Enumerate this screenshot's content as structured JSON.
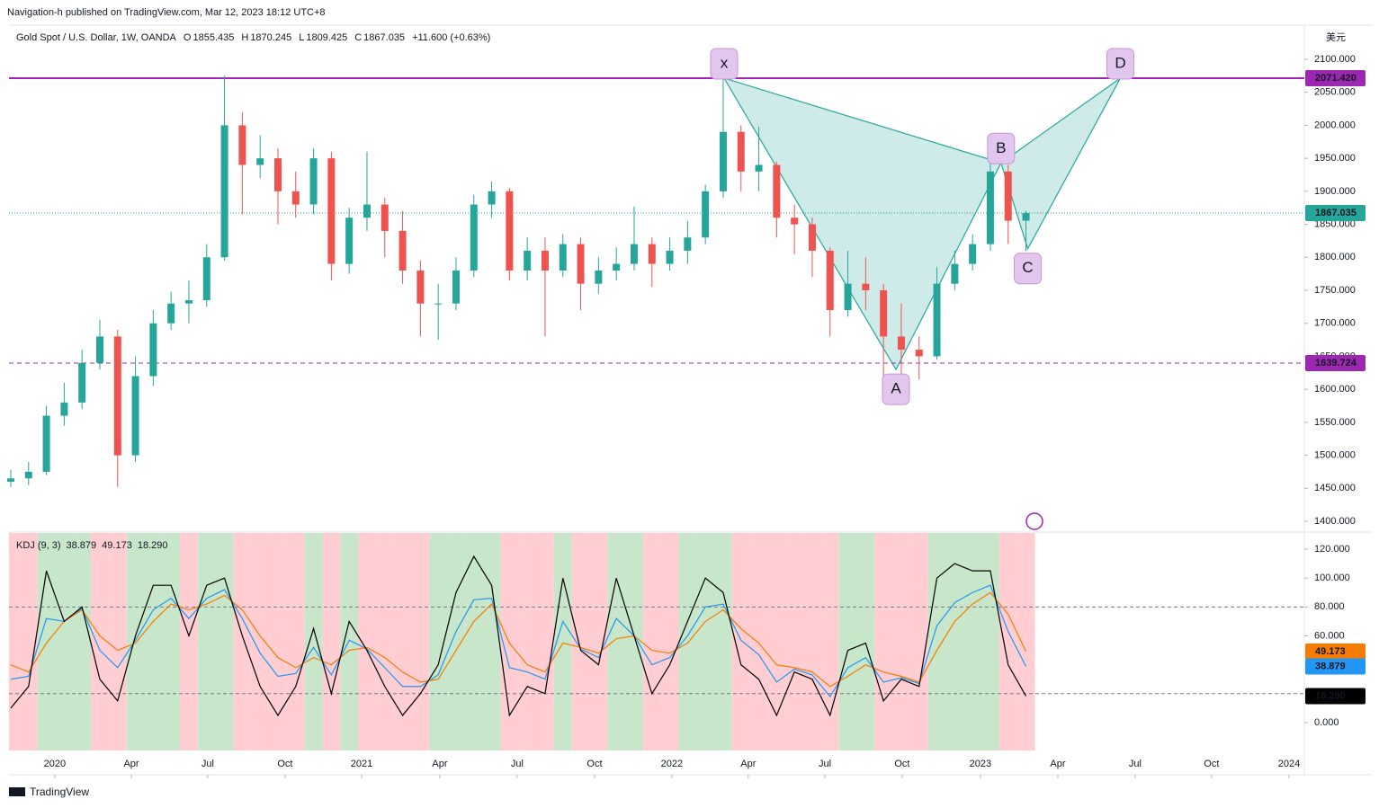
{
  "header": {
    "published": "Navigation-h published on TradingView.com, Mar 12, 2023 18:12 UTC+8",
    "symbol": "Gold Spot / U.S. Dollar, 1W, OANDA",
    "o": "O",
    "h": "H",
    "l": "L",
    "c": "C",
    "change": "+11.600 (+0.63%)"
  },
  "footer": "TradingView",
  "chart_data": [
    {
      "type": "candlestick",
      "y_unit": "美元",
      "up_color": "#26a69a",
      "down_color": "#ef5350",
      "open": [
        1460,
        1465,
        1475,
        1560,
        1580,
        1640,
        1680,
        1500,
        1620,
        1700,
        1730,
        1735,
        1800,
        2000,
        1940,
        1950,
        1900,
        1880,
        1950,
        1790,
        1860,
        1880,
        1840,
        1780,
        1730,
        1730,
        1780,
        1880,
        1900,
        1780,
        1810,
        1780,
        1820,
        1760,
        1780,
        1790,
        1820,
        1790,
        1810,
        1830,
        1900,
        1990,
        1930,
        1940,
        1860,
        1850,
        1810,
        1720,
        1760,
        1750,
        1680,
        1660,
        1650,
        1760,
        1790,
        1820,
        1930,
        1855.435
      ],
      "high": [
        1478,
        1490,
        1575,
        1610,
        1660,
        1705,
        1690,
        1650,
        1720,
        1748,
        1765,
        1820,
        2075,
        2020,
        1985,
        1965,
        1930,
        1965,
        1960,
        1875,
        1960,
        1890,
        1870,
        1795,
        1760,
        1800,
        1895,
        1915,
        1905,
        1830,
        1830,
        1835,
        1830,
        1800,
        1815,
        1877,
        1830,
        1830,
        1855,
        1910,
        2070,
        2000,
        1998,
        1945,
        1880,
        1860,
        1815,
        1810,
        1800,
        1760,
        1730,
        1680,
        1785,
        1810,
        1835,
        1960,
        1940,
        1870.245
      ],
      "low": [
        1452,
        1455,
        1470,
        1545,
        1570,
        1630,
        1452,
        1490,
        1605,
        1690,
        1700,
        1725,
        1795,
        1865,
        1920,
        1850,
        1860,
        1865,
        1765,
        1775,
        1840,
        1800,
        1760,
        1680,
        1675,
        1720,
        1770,
        1860,
        1765,
        1765,
        1680,
        1770,
        1720,
        1745,
        1765,
        1780,
        1755,
        1780,
        1790,
        1820,
        1890,
        1900,
        1900,
        1830,
        1805,
        1770,
        1680,
        1710,
        1720,
        1615,
        1620,
        1615,
        1645,
        1750,
        1780,
        1810,
        1820,
        1809.425
      ],
      "close": [
        1465,
        1475,
        1560,
        1580,
        1640,
        1680,
        1500,
        1620,
        1700,
        1730,
        1735,
        1800,
        2000,
        1940,
        1950,
        1900,
        1880,
        1950,
        1790,
        1860,
        1880,
        1840,
        1780,
        1730,
        1730,
        1780,
        1880,
        1900,
        1780,
        1810,
        1780,
        1820,
        1760,
        1780,
        1790,
        1820,
        1790,
        1810,
        1830,
        1900,
        1990,
        1930,
        1940,
        1860,
        1850,
        1810,
        1720,
        1760,
        1750,
        1680,
        1660,
        1650,
        1760,
        1790,
        1820,
        1930,
        1855.435,
        1867.035
      ],
      "xlim": [
        -0.1,
        72.63
      ],
      "xticks": [
        {
          "value": 2.47,
          "label": "2020"
        },
        {
          "value": 6.77,
          "label": "Apr"
        },
        {
          "value": 11.06,
          "label": "Jul"
        },
        {
          "value": 15.4,
          "label": "Oct"
        },
        {
          "value": 19.7,
          "label": "2021"
        },
        {
          "value": 24.09,
          "label": "Apr"
        },
        {
          "value": 28.43,
          "label": "Jul"
        },
        {
          "value": 32.78,
          "label": "Oct"
        },
        {
          "value": 37.12,
          "label": "2022"
        },
        {
          "value": 41.41,
          "label": "Apr"
        },
        {
          "value": 45.71,
          "label": "Jul"
        },
        {
          "value": 50.05,
          "label": "Oct"
        },
        {
          "value": 54.44,
          "label": "2023"
        },
        {
          "value": 58.79,
          "label": "Apr"
        },
        {
          "value": 63.13,
          "label": "Jul"
        },
        {
          "value": 67.42,
          "label": "Oct"
        },
        {
          "value": 71.77,
          "label": "2024"
        }
      ],
      "ylim": [
        1386.4,
        2149
      ],
      "yticks": [
        {
          "value": 1400,
          "label": "1400.000"
        },
        {
          "value": 1450,
          "label": "1450.000"
        },
        {
          "value": 1500,
          "label": "1500.000"
        },
        {
          "value": 1550,
          "label": "1550.000"
        },
        {
          "value": 1600,
          "label": "1600.000"
        },
        {
          "value": 1650,
          "label": "1650.000"
        },
        {
          "value": 1700,
          "label": "1700.000"
        },
        {
          "value": 1750,
          "label": "1750.000"
        },
        {
          "value": 1800,
          "label": "1800.000"
        },
        {
          "value": 1850,
          "label": "1850.000"
        },
        {
          "value": 1900,
          "label": "1900.000"
        },
        {
          "value": 1950,
          "label": "1950.000"
        },
        {
          "value": 2000,
          "label": "2000.000"
        },
        {
          "value": 2050,
          "label": "2050.000"
        },
        {
          "value": 2100,
          "label": "2100.000"
        }
      ],
      "hlines": [
        {
          "value": 2071.42,
          "label": "2071.420",
          "style": "solid",
          "color": "#9c27b0"
        },
        {
          "value": 1639.724,
          "label": "1639.724",
          "style": "dashed",
          "color": "#9c27b0"
        }
      ],
      "pattern": {
        "labels": [
          "x",
          "A",
          "B",
          "C",
          "D"
        ],
        "x": [
          40.05,
          49.7,
          55.6,
          57.1,
          62.3
        ],
        "y": [
          2071.42,
          1630,
          1943,
          1813,
          2071.42
        ],
        "color": "#26a69a"
      }
    },
    {
      "type": "line",
      "title": "KDJ (9, 3)",
      "series": [
        {
          "color": "#2196f3",
          "values": [
            30,
            32,
            72,
            70,
            79,
            50,
            38,
            57,
            78,
            86,
            72,
            86,
            92,
            72,
            48,
            32,
            34,
            52,
            33,
            57,
            51,
            38,
            25,
            25,
            33,
            63,
            85,
            86,
            38,
            35,
            30,
            70,
            51,
            45,
            72,
            60,
            40,
            45,
            60,
            80,
            82,
            57,
            47,
            28,
            37,
            33,
            18,
            38,
            45,
            28,
            31,
            27,
            67,
            83,
            90,
            95,
            63,
            38.879
          ]
        },
        {
          "color": "#f57c00",
          "values": [
            40,
            35,
            55,
            70,
            78,
            60,
            50,
            55,
            70,
            82,
            78,
            82,
            88,
            78,
            60,
            45,
            38,
            45,
            40,
            50,
            52,
            45,
            35,
            28,
            30,
            50,
            70,
            82,
            55,
            40,
            35,
            55,
            52,
            48,
            58,
            60,
            50,
            48,
            55,
            70,
            78,
            65,
            55,
            40,
            38,
            35,
            25,
            32,
            40,
            35,
            32,
            28,
            50,
            70,
            82,
            90,
            75,
            49.173
          ]
        },
        {
          "color": "#000000",
          "values": [
            10,
            25,
            105,
            70,
            80,
            30,
            15,
            60,
            95,
            95,
            60,
            95,
            100,
            60,
            25,
            5,
            25,
            65,
            20,
            70,
            50,
            25,
            5,
            20,
            40,
            90,
            115,
            95,
            5,
            25,
            20,
            100,
            50,
            40,
            100,
            60,
            20,
            40,
            70,
            100,
            90,
            40,
            30,
            5,
            35,
            30,
            5,
            50,
            55,
            15,
            30,
            25,
            100,
            110,
            105,
            105,
            40,
            18.29
          ],
          "value_labels": [
            null,
            null,
            null,
            null,
            null,
            null,
            null,
            null,
            null,
            null,
            null,
            null,
            null,
            null,
            null,
            null,
            null,
            null,
            null,
            null,
            null,
            null,
            null,
            null,
            null,
            null,
            null,
            null,
            null,
            null,
            null,
            null,
            null,
            null,
            null,
            null,
            null,
            null,
            null,
            null,
            null,
            null,
            null,
            null,
            null,
            null,
            null,
            null,
            null,
            null,
            null,
            null,
            null,
            null,
            null,
            null,
            null,
            "18.290"
          ]
        }
      ],
      "ylim": [
        -19.3,
        131.2
      ],
      "yticks": [
        {
          "value": 0,
          "label": "0.000"
        },
        {
          "value": 60,
          "label": "60.000"
        },
        {
          "value": 80,
          "label": "80.000"
        },
        {
          "value": 100,
          "label": "100.000"
        },
        {
          "value": 120,
          "label": "120.000"
        }
      ],
      "hlines": [
        80,
        20
      ],
      "up_shade": "#c8e6c9",
      "down_shade": "#ffcdd2"
    }
  ]
}
